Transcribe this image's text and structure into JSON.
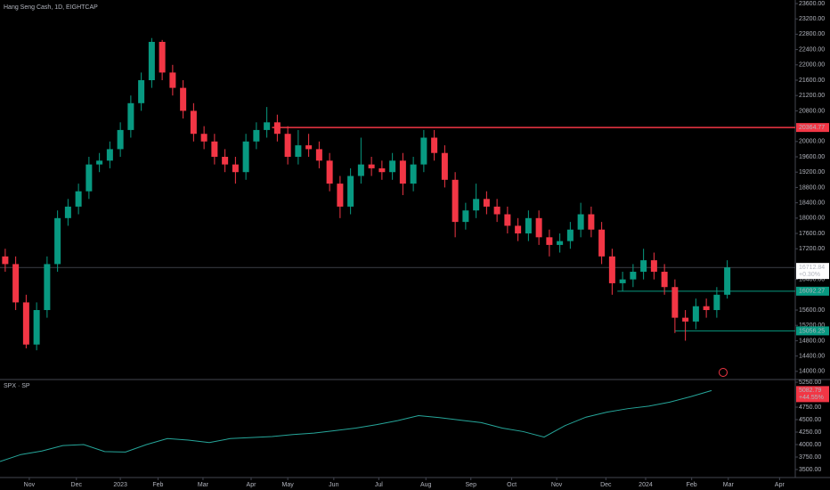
{
  "chart_data": [
    {
      "type": "candlestick",
      "title": "Hang Seng Cash, 1D, EIGHTCAP",
      "up_color": "#089981",
      "down_color": "#f23645",
      "open": [
        17000,
        16800,
        15800,
        14700,
        15600,
        16800,
        18000,
        18300,
        18700,
        19400,
        19500,
        19800,
        20300,
        21000,
        21600,
        22600,
        21800,
        21400,
        20800,
        20200,
        20000,
        19600,
        19400,
        19200,
        20000,
        20300,
        20500,
        20200,
        19600,
        19900,
        19800,
        19500,
        18900,
        18300,
        19100,
        19400,
        19300,
        19200,
        19500,
        18900,
        19400,
        20100,
        19700,
        19000,
        17900,
        18200,
        18500,
        18300,
        18100,
        17800,
        17600,
        18000,
        17500,
        17300,
        17400,
        17700,
        18100,
        17700,
        17000,
        16300,
        16400,
        16600,
        16900,
        16600,
        16200,
        15400,
        15300,
        15700,
        15600,
        16000
      ],
      "high": [
        17200,
        17000,
        16000,
        15800,
        17000,
        18200,
        18500,
        18900,
        19600,
        19700,
        20000,
        20500,
        21200,
        21800,
        22700,
        22650,
        22000,
        21600,
        21000,
        20400,
        20200,
        19800,
        19600,
        20200,
        20500,
        20900,
        20700,
        20400,
        20300,
        20200,
        20000,
        19700,
        19100,
        19300,
        20100,
        19600,
        19500,
        19700,
        19700,
        19600,
        20300,
        20300,
        19900,
        19200,
        18400,
        18900,
        18700,
        18500,
        18300,
        18000,
        18200,
        18200,
        17700,
        17600,
        17900,
        18400,
        18300,
        17900,
        17200,
        16600,
        16800,
        17200,
        17100,
        16800,
        16400,
        15600,
        15900,
        15900,
        16200,
        16900
      ],
      "low": [
        16600,
        15600,
        14600,
        14550,
        15400,
        16600,
        17800,
        18100,
        18500,
        19200,
        19300,
        19600,
        20100,
        20800,
        21400,
        21600,
        21200,
        20600,
        20000,
        19800,
        19400,
        19200,
        18900,
        19000,
        19800,
        20100,
        20000,
        19400,
        19400,
        19600,
        19300,
        18700,
        18000,
        18100,
        18900,
        19100,
        19000,
        19000,
        18600,
        18700,
        19200,
        19500,
        18800,
        17500,
        17700,
        18000,
        18100,
        17900,
        17600,
        17400,
        17400,
        17300,
        17000,
        17100,
        17200,
        17500,
        17500,
        16800,
        16000,
        16100,
        16200,
        16400,
        16400,
        16000,
        15000,
        14800,
        15100,
        15400,
        15400,
        15900
      ],
      "close": [
        16800,
        15800,
        14700,
        15600,
        16800,
        18000,
        18300,
        18700,
        19400,
        19500,
        19800,
        20300,
        21000,
        21600,
        22600,
        21800,
        21400,
        20800,
        20200,
        20000,
        19600,
        19400,
        19200,
        20000,
        20300,
        20500,
        20200,
        19600,
        19900,
        19800,
        19500,
        18900,
        18300,
        19100,
        19400,
        19300,
        19200,
        19500,
        18900,
        19400,
        20100,
        19700,
        19000,
        17900,
        18200,
        18500,
        18300,
        18100,
        17800,
        17600,
        18000,
        17500,
        17300,
        17400,
        17700,
        18100,
        17700,
        17000,
        16300,
        16400,
        16600,
        16900,
        16600,
        16200,
        15400,
        15300,
        15700,
        15600,
        16000,
        16712.84
      ],
      "last_change": "+0.30%",
      "levels": [
        {
          "value": 20364.77,
          "start": 26,
          "color": "#f23645"
        },
        {
          "value": 16092.27,
          "start": 59,
          "color": "#089981"
        },
        {
          "value": 15056.25,
          "start": 64.5,
          "color": "#089981"
        }
      ],
      "xlim": [
        0,
        76
      ],
      "ylim": [
        13810,
        23693
      ],
      "yticks": [
        {
          "value": 23600,
          "label": "23600.00"
        },
        {
          "value": 23200,
          "label": "23200.00"
        },
        {
          "value": 22800,
          "label": "22800.00"
        },
        {
          "value": 22400,
          "label": "22400.00"
        },
        {
          "value": 22000,
          "label": "22000.00"
        },
        {
          "value": 21600,
          "label": "21600.00"
        },
        {
          "value": 21200,
          "label": "21200.00"
        },
        {
          "value": 20800,
          "label": "20800.00"
        },
        {
          "value": 20000,
          "label": "20000.00"
        },
        {
          "value": 19600,
          "label": "19600.00"
        },
        {
          "value": 19200,
          "label": "19200.00"
        },
        {
          "value": 18800,
          "label": "18800.00"
        },
        {
          "value": 18400,
          "label": "18400.00"
        },
        {
          "value": 18000,
          "label": "18000.00"
        },
        {
          "value": 17600,
          "label": "17600.00"
        },
        {
          "value": 17200,
          "label": "17200.00"
        },
        {
          "value": 16400,
          "label": "16400.00"
        },
        {
          "value": 15600,
          "label": "15600.00"
        },
        {
          "value": 15200,
          "label": "15200.00"
        },
        {
          "value": 14800,
          "label": "14800.00"
        },
        {
          "value": 14400,
          "label": "14400.00"
        },
        {
          "value": 14000,
          "label": "14000.00"
        }
      ]
    },
    {
      "type": "line",
      "title": "SPX · SP",
      "color": "#26a69a",
      "x": [
        0,
        2,
        4,
        6,
        8,
        10,
        12,
        14,
        16,
        18,
        20,
        22,
        24,
        26,
        28,
        30,
        32,
        34,
        36,
        38,
        40,
        42,
        44,
        46,
        48,
        50,
        52,
        54,
        56,
        58,
        60,
        62,
        64,
        66,
        68
      ],
      "values": [
        3660,
        3800,
        3870,
        3980,
        4000,
        3860,
        3850,
        4000,
        4120,
        4090,
        4040,
        4120,
        4140,
        4160,
        4200,
        4230,
        4280,
        4330,
        4400,
        4480,
        4580,
        4540,
        4490,
        4440,
        4330,
        4260,
        4150,
        4380,
        4550,
        4650,
        4720,
        4770,
        4850,
        4960,
        5082.79
      ],
      "last_change": "+44.55%",
      "label_color": "#f23645",
      "xlim": [
        0,
        76
      ],
      "ylim": [
        3357,
        5286
      ],
      "yticks": [
        {
          "value": 5250,
          "label": "5250.00"
        },
        {
          "value": 4750,
          "label": "4750.00"
        },
        {
          "value": 4500,
          "label": "4500.00"
        },
        {
          "value": 4250,
          "label": "4250.00"
        },
        {
          "value": 4000,
          "label": "4000.00"
        },
        {
          "value": 3750,
          "label": "3750.00"
        },
        {
          "value": 3500,
          "label": "3500.00"
        }
      ],
      "xticks": [
        {
          "value": 2.8,
          "label": "Nov"
        },
        {
          "value": 7.3,
          "label": "Dec"
        },
        {
          "value": 11.5,
          "label": "2023"
        },
        {
          "value": 15.1,
          "label": "Feb"
        },
        {
          "value": 19.4,
          "label": "Mar"
        },
        {
          "value": 24,
          "label": "Apr"
        },
        {
          "value": 27.5,
          "label": "May"
        },
        {
          "value": 31.9,
          "label": "Jun"
        },
        {
          "value": 36.2,
          "label": "Jul"
        },
        {
          "value": 40.7,
          "label": "Aug"
        },
        {
          "value": 45,
          "label": "Sep"
        },
        {
          "value": 48.9,
          "label": "Oct"
        },
        {
          "value": 53.2,
          "label": "Nov"
        },
        {
          "value": 57.9,
          "label": "Dec"
        },
        {
          "value": 61.7,
          "label": "2024"
        },
        {
          "value": 66.1,
          "label": "Feb"
        },
        {
          "value": 69.6,
          "label": "Mar"
        },
        {
          "value": 74.5,
          "label": "Apr"
        }
      ]
    }
  ]
}
